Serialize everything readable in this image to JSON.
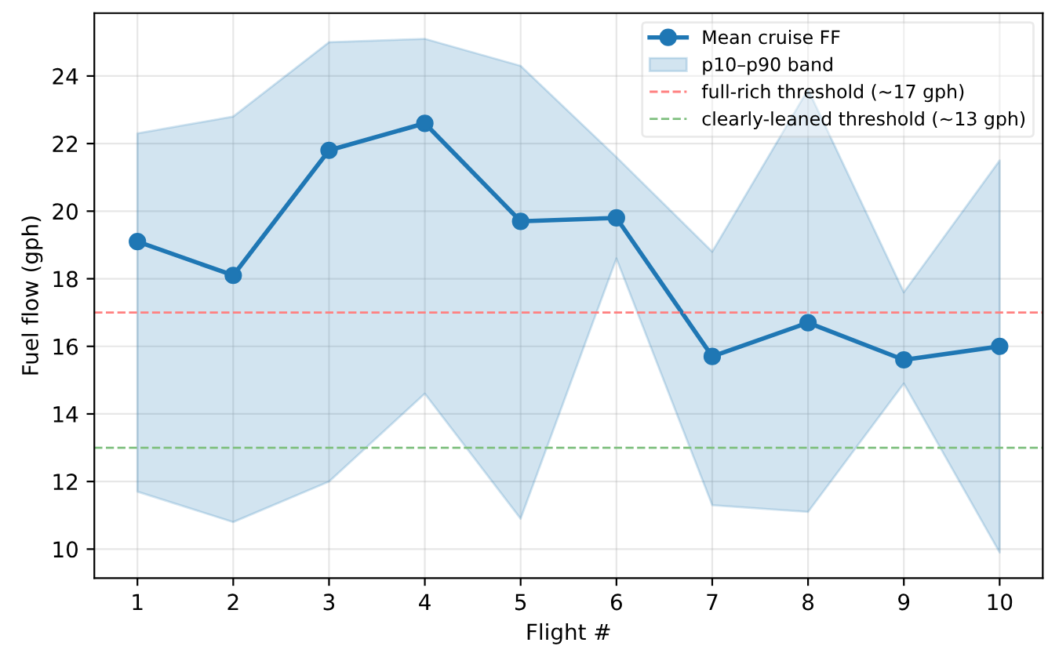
{
  "chart_data": {
    "type": "line",
    "xlabel": "Flight #",
    "ylabel": "Fuel flow (gph)",
    "x": [
      1,
      2,
      3,
      4,
      5,
      6,
      7,
      8,
      9,
      10
    ],
    "series": [
      {
        "name": "Mean cruise FF",
        "color": "#1f77b4",
        "marker": "circle",
        "values": [
          19.1,
          18.1,
          21.8,
          22.6,
          19.7,
          19.8,
          15.7,
          16.7,
          15.6,
          16.0
        ],
        "lower": [
          11.7,
          10.8,
          12.0,
          14.6,
          10.9,
          18.6,
          11.3,
          11.1,
          14.9,
          9.9
        ],
        "upper": [
          22.3,
          22.8,
          25.0,
          25.1,
          24.3,
          21.6,
          18.8,
          23.6,
          17.6,
          21.5
        ]
      }
    ],
    "annotations": [
      "p10–p90 band"
    ],
    "ref_lines": [
      {
        "axis": "y",
        "value": 17,
        "label": "full-rich threshold (~17 gph)",
        "color": "#ff8080",
        "line_style": "dashed"
      },
      {
        "axis": "y",
        "value": 13,
        "label": "clearly-leaned threshold (~13 gph)",
        "color": "#80c080",
        "line_style": "dashed"
      }
    ],
    "xlim": [
      0.55,
      10.45
    ],
    "ylim": [
      9.14,
      25.86
    ],
    "xticks": [
      1,
      2,
      3,
      4,
      5,
      6,
      7,
      8,
      9,
      10
    ],
    "yticks": [
      10,
      12,
      14,
      16,
      18,
      20,
      22,
      24
    ],
    "grid": true,
    "legend": "top right"
  }
}
